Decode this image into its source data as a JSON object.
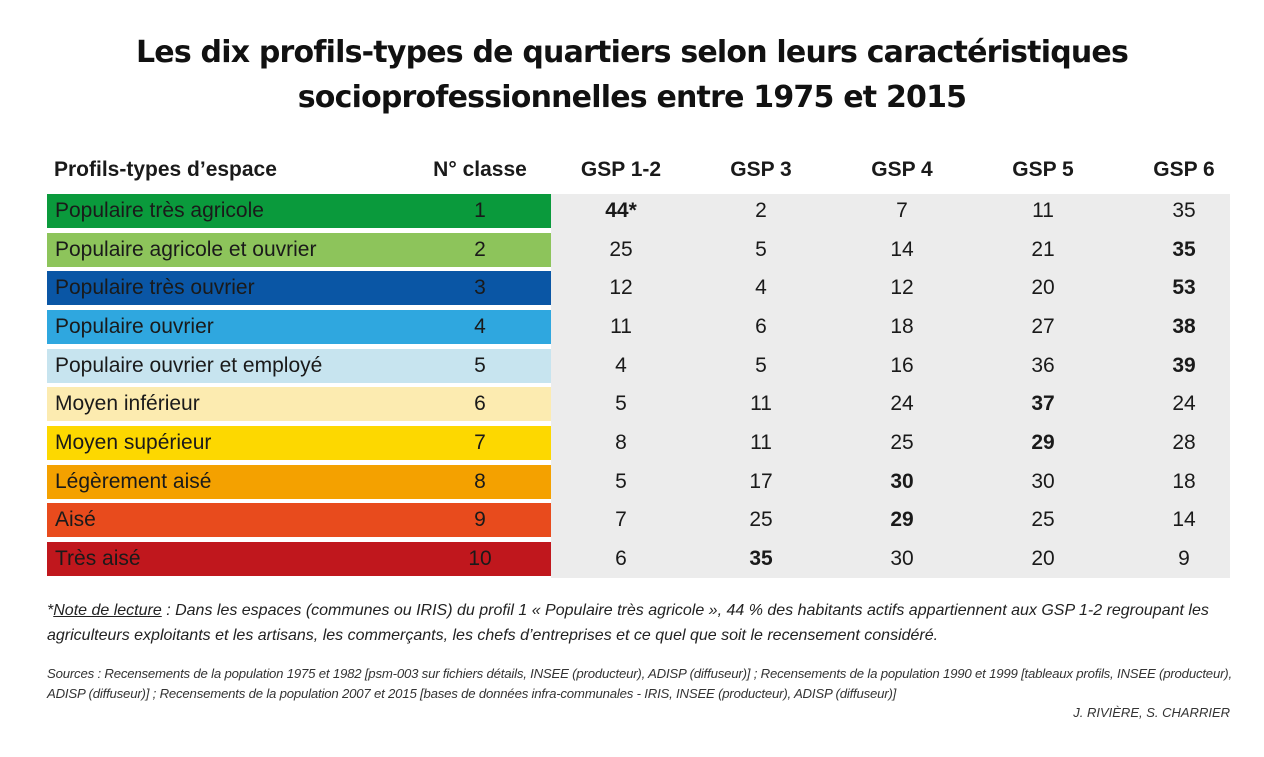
{
  "title_line1": "Les dix profils-types de quartiers selon leurs caractéristiques",
  "title_line2": "socioprofessionnelles entre 1975 et 2015",
  "chart_data": {
    "type": "table",
    "headers": [
      "Profils-types d’espace",
      "N° classe",
      "GSP 1-2",
      "GSP 3",
      "GSP 4",
      "GSP 5",
      "GSP 6"
    ],
    "rows": [
      {
        "profile": "Populaire très agricole",
        "classe": "1",
        "values": [
          "44*",
          "2",
          "7",
          "11",
          "35"
        ],
        "bold": [
          0
        ],
        "color": "#0a9a3c",
        "text_color": "#1a1a1a"
      },
      {
        "profile": "Populaire agricole et ouvrier",
        "classe": "2",
        "values": [
          "25",
          "5",
          "14",
          "21",
          "35"
        ],
        "bold": [
          4
        ],
        "color": "#8dc45b",
        "text_color": "#1a1a1a"
      },
      {
        "profile": "Populaire très ouvrier",
        "classe": "3",
        "values": [
          "12",
          "4",
          "12",
          "20",
          "53"
        ],
        "bold": [
          4
        ],
        "color": "#0a56a5",
        "text_color": "#1a1a1a"
      },
      {
        "profile": "Populaire ouvrier",
        "classe": "4",
        "values": [
          "11",
          "6",
          "18",
          "27",
          "38"
        ],
        "bold": [
          4
        ],
        "color": "#2fa7df",
        "text_color": "#1a1a1a"
      },
      {
        "profile": "Populaire ouvrier et employé",
        "classe": "5",
        "values": [
          "4",
          "5",
          "16",
          "36",
          "39"
        ],
        "bold": [
          4
        ],
        "color": "#c7e4ef",
        "text_color": "#1a1a1a"
      },
      {
        "profile": "Moyen inférieur",
        "classe": "6",
        "values": [
          "5",
          "11",
          "24",
          "37",
          "24"
        ],
        "bold": [
          3
        ],
        "color": "#fcebb0",
        "text_color": "#1a1a1a"
      },
      {
        "profile": "Moyen supérieur",
        "classe": "7",
        "values": [
          "8",
          "11",
          "25",
          "29",
          "28"
        ],
        "bold": [
          3
        ],
        "color": "#fdd800",
        "text_color": "#1a1a1a"
      },
      {
        "profile": "Légèrement aisé",
        "classe": "8",
        "values": [
          "5",
          "17",
          "30",
          "30",
          "18"
        ],
        "bold": [
          2
        ],
        "color": "#f4a100",
        "text_color": "#1a1a1a"
      },
      {
        "profile": "Aisé",
        "classe": "9",
        "values": [
          "7",
          "25",
          "29",
          "25",
          "14"
        ],
        "bold": [
          2
        ],
        "color": "#e84b1d",
        "text_color": "#1a1a1a"
      },
      {
        "profile": "Très aisé",
        "classe": "10",
        "values": [
          "6",
          "35",
          "30",
          "20",
          "9"
        ],
        "bold": [
          1
        ],
        "color": "#c0171d",
        "text_color": "#1a1a1a"
      }
    ]
  },
  "note": {
    "prefix": "*",
    "label": "Note de lecture",
    "text": " : Dans les espaces (communes ou IRIS) du profil 1 « Populaire très agricole », 44 % des habitants actifs appartiennent aux GSP 1-2 regroupant les agriculteurs exploitants et les artisans, les commerçants, les chefs d’entreprises et ce quel que soit le recensement considéré."
  },
  "sources": "Sources : Recensements de la population 1975 et 1982 [psm-003 sur fichiers détails, INSEE (producteur), ADISP (diffuseur)] ; Recensements de la population 1990 et 1999 [tableaux profils, INSEE (producteur), ADISP (diffuseur)] ; Recensements de la population 2007 et 2015 [bases de données infra-communales - IRIS, INSEE (producteur), ADISP (diffuseur)]",
  "credit": "J. RIVIÈRE, S. CHARRIER"
}
